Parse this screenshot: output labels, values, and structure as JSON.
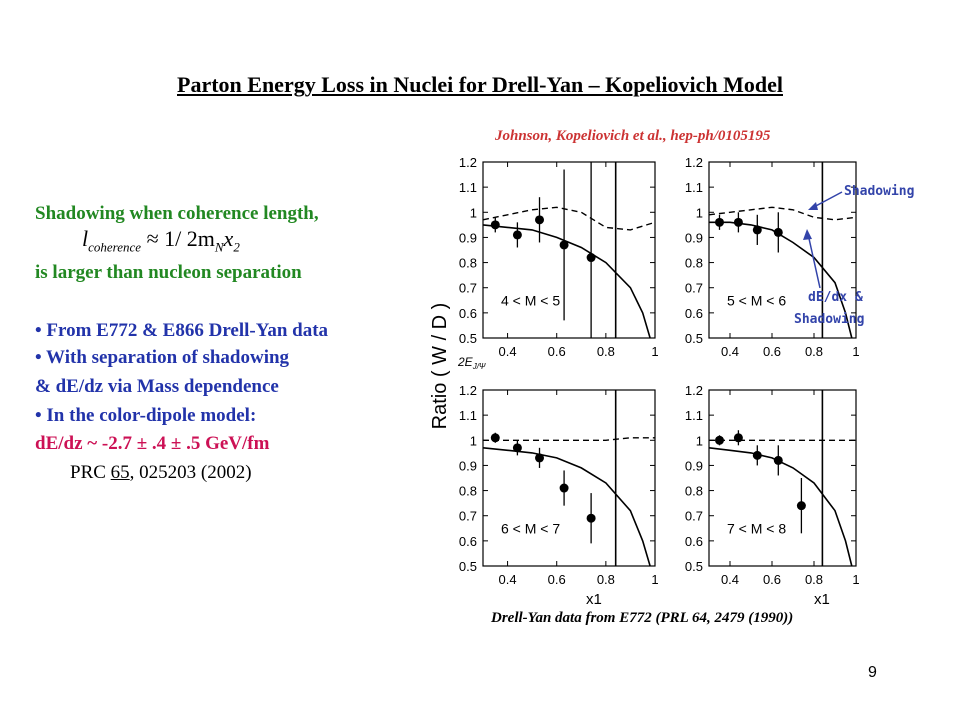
{
  "slide": {
    "title": "Parton Energy Loss in Nuclei for Drell-Yan – Kopeliovich Model",
    "citation": "Johnson, Kopeliovich et al., hep-ph/0105195",
    "page_number": "9"
  },
  "left": {
    "line1": "Shadowing when coherence length,",
    "formula_main": "l",
    "formula_sub": "coherence",
    "formula_rest": " ≈ 1/ 2m",
    "formula_sub2": "N",
    "formula_x": "x",
    "formula_sub3": "2",
    "line2": "is larger than nucleon separation",
    "bullet1": "• From E772 & E866 Drell-Yan data",
    "bullet2": "• With separation of shadowing",
    "bullet2b": "& dE/dz via Mass dependence",
    "bullet3": "• In the color-dipole model:",
    "dedz": "dE/dz ~ -2.7 ± .4 ± .5 GeV/fm",
    "ref_prefix": "PRC ",
    "ref_vol": "65",
    "ref_rest": ", 025203 (2002)"
  },
  "figure": {
    "ylabel": "Ratio ( W / D )",
    "xlabel": "x1",
    "small_label": "2E",
    "small_label_sub": "J/Ψ",
    "caption": "Drell-Yan data from E772 (PRL 64, 2479 (1990))",
    "annotation_shadowing": "Shadowing",
    "annotation_dedx_1": "dE/dx &",
    "annotation_dedx_2": "Shadowing",
    "annotation_color": "#3344aa"
  },
  "chart_data": [
    {
      "type": "scatter",
      "panel_label": "4 < M < 5",
      "xlim": [
        0.3,
        1.0
      ],
      "ylim": [
        0.5,
        1.2
      ],
      "xticks": [
        "0.4",
        "0.6",
        "0.8",
        "1"
      ],
      "yticks": [
        "0.5",
        "0.6",
        "0.7",
        "0.8",
        "0.9",
        "1",
        "1.1",
        "1.2"
      ],
      "points": [
        {
          "x": 0.35,
          "y": 0.95,
          "err": 0.03
        },
        {
          "x": 0.44,
          "y": 0.91,
          "err": 0.05
        },
        {
          "x": 0.53,
          "y": 0.97,
          "err": 0.09
        },
        {
          "x": 0.63,
          "y": 0.87,
          "err": 0.3
        },
        {
          "x": 0.74,
          "y": 0.82,
          "err": 0.4
        }
      ],
      "vline_x": 0.84,
      "dashed_curve": [
        [
          0.3,
          0.97
        ],
        [
          0.4,
          0.99
        ],
        [
          0.5,
          1.01
        ],
        [
          0.6,
          1.02
        ],
        [
          0.7,
          1.0
        ],
        [
          0.8,
          0.94
        ],
        [
          0.9,
          0.93
        ],
        [
          1.0,
          0.96
        ]
      ],
      "solid_curve": [
        [
          0.3,
          0.95
        ],
        [
          0.4,
          0.94
        ],
        [
          0.5,
          0.93
        ],
        [
          0.6,
          0.9
        ],
        [
          0.7,
          0.86
        ],
        [
          0.8,
          0.8
        ],
        [
          0.9,
          0.7
        ],
        [
          0.95,
          0.6
        ],
        [
          0.98,
          0.5
        ]
      ]
    },
    {
      "type": "scatter",
      "panel_label": "5 < M < 6",
      "xlim": [
        0.3,
        1.0
      ],
      "ylim": [
        0.5,
        1.2
      ],
      "xticks": [
        "0.4",
        "0.6",
        "0.8",
        "1"
      ],
      "yticks": [
        "0.5",
        "0.6",
        "0.7",
        "0.8",
        "0.9",
        "1",
        "1.1",
        "1.2"
      ],
      "points": [
        {
          "x": 0.35,
          "y": 0.96,
          "err": 0.03
        },
        {
          "x": 0.44,
          "y": 0.96,
          "err": 0.04
        },
        {
          "x": 0.53,
          "y": 0.93,
          "err": 0.06
        },
        {
          "x": 0.63,
          "y": 0.92,
          "err": 0.08
        }
      ],
      "vline_x": 0.84,
      "dashed_curve": [
        [
          0.3,
          0.99
        ],
        [
          0.4,
          1.0
        ],
        [
          0.5,
          1.01
        ],
        [
          0.6,
          1.02
        ],
        [
          0.7,
          1.01
        ],
        [
          0.8,
          0.98
        ],
        [
          0.9,
          0.97
        ],
        [
          1.0,
          0.98
        ]
      ],
      "solid_curve": [
        [
          0.3,
          0.96
        ],
        [
          0.4,
          0.96
        ],
        [
          0.5,
          0.95
        ],
        [
          0.6,
          0.93
        ],
        [
          0.7,
          0.88
        ],
        [
          0.8,
          0.82
        ],
        [
          0.9,
          0.72
        ],
        [
          0.95,
          0.6
        ],
        [
          0.98,
          0.5
        ]
      ]
    },
    {
      "type": "scatter",
      "panel_label": "6 < M < 7",
      "xlim": [
        0.3,
        1.0
      ],
      "ylim": [
        0.5,
        1.2
      ],
      "xticks": [
        "0.4",
        "0.6",
        "0.8",
        "1"
      ],
      "yticks": [
        "0.5",
        "0.6",
        "0.7",
        "0.8",
        "0.9",
        "1",
        "1.1",
        "1.2"
      ],
      "points": [
        {
          "x": 0.35,
          "y": 1.01,
          "err": 0.02
        },
        {
          "x": 0.44,
          "y": 0.97,
          "err": 0.03
        },
        {
          "x": 0.53,
          "y": 0.93,
          "err": 0.04
        },
        {
          "x": 0.63,
          "y": 0.81,
          "err": 0.07
        },
        {
          "x": 0.74,
          "y": 0.69,
          "err": 0.1
        }
      ],
      "vline_x": 0.84,
      "dashed_curve": [
        [
          0.3,
          1.0
        ],
        [
          0.4,
          1.0
        ],
        [
          0.5,
          1.0
        ],
        [
          0.6,
          1.0
        ],
        [
          0.7,
          1.0
        ],
        [
          0.8,
          1.0
        ],
        [
          0.9,
          1.01
        ],
        [
          1.0,
          1.01
        ]
      ],
      "solid_curve": [
        [
          0.3,
          0.97
        ],
        [
          0.4,
          0.96
        ],
        [
          0.5,
          0.95
        ],
        [
          0.6,
          0.93
        ],
        [
          0.7,
          0.89
        ],
        [
          0.8,
          0.83
        ],
        [
          0.9,
          0.72
        ],
        [
          0.95,
          0.6
        ],
        [
          0.98,
          0.5
        ]
      ]
    },
    {
      "type": "scatter",
      "panel_label": "7 < M < 8",
      "xlim": [
        0.3,
        1.0
      ],
      "ylim": [
        0.5,
        1.2
      ],
      "xticks": [
        "0.4",
        "0.6",
        "0.8",
        "1"
      ],
      "yticks": [
        "0.5",
        "0.6",
        "0.7",
        "0.8",
        "0.9",
        "1",
        "1.1",
        "1.2"
      ],
      "points": [
        {
          "x": 0.35,
          "y": 1.0,
          "err": 0.02
        },
        {
          "x": 0.44,
          "y": 1.01,
          "err": 0.03
        },
        {
          "x": 0.53,
          "y": 0.94,
          "err": 0.04
        },
        {
          "x": 0.63,
          "y": 0.92,
          "err": 0.06
        },
        {
          "x": 0.74,
          "y": 0.74,
          "err": 0.11
        }
      ],
      "vline_x": 0.84,
      "dashed_curve": [
        [
          0.3,
          1.0
        ],
        [
          0.4,
          1.0
        ],
        [
          0.5,
          1.0
        ],
        [
          0.6,
          1.0
        ],
        [
          0.7,
          1.0
        ],
        [
          0.8,
          1.0
        ],
        [
          0.9,
          1.0
        ],
        [
          1.0,
          1.0
        ]
      ],
      "solid_curve": [
        [
          0.3,
          0.97
        ],
        [
          0.4,
          0.96
        ],
        [
          0.5,
          0.95
        ],
        [
          0.6,
          0.93
        ],
        [
          0.7,
          0.89
        ],
        [
          0.8,
          0.83
        ],
        [
          0.9,
          0.72
        ],
        [
          0.95,
          0.6
        ],
        [
          0.98,
          0.5
        ]
      ]
    }
  ]
}
